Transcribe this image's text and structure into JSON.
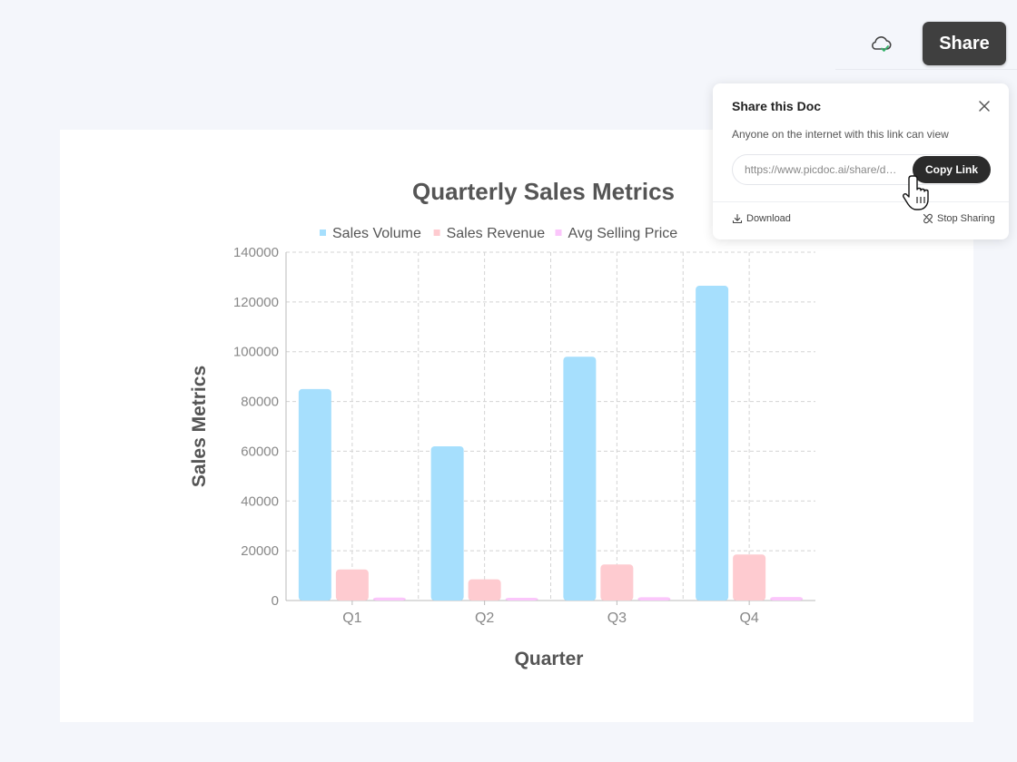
{
  "toolbar": {
    "share_label": "Share",
    "cloud_icon": "cloud-check-icon"
  },
  "share_popup": {
    "title": "Share this Doc",
    "description": "Anyone on the internet with this link can view",
    "link_value": "https://www.picdoc.ai/share/d…",
    "copy_label": "Copy Link",
    "download_label": "Download",
    "stop_sharing_label": "Stop Sharing"
  },
  "chart_data": {
    "type": "bar",
    "title": "Quarterly Sales Metrics",
    "xlabel": "Quarter",
    "ylabel": "Sales Metrics",
    "categories": [
      "Q1",
      "Q2",
      "Q3",
      "Q4"
    ],
    "ylim": [
      0,
      140000
    ],
    "yticks": [
      "0",
      "20000",
      "40000",
      "60000",
      "80000",
      "100000",
      "120000",
      "140000"
    ],
    "grid": true,
    "legend_position": "top",
    "series": [
      {
        "name": "Sales Volume",
        "color": "#a6dffd",
        "values": [
          85000,
          62000,
          98000,
          126500
        ]
      },
      {
        "name": "Sales Revenue",
        "color": "#fecbd0",
        "values": [
          12500,
          8500,
          14500,
          18500
        ]
      },
      {
        "name": "Avg Selling Price",
        "color": "#fbc6fb",
        "values": [
          1200,
          1000,
          1300,
          1400
        ]
      }
    ]
  }
}
